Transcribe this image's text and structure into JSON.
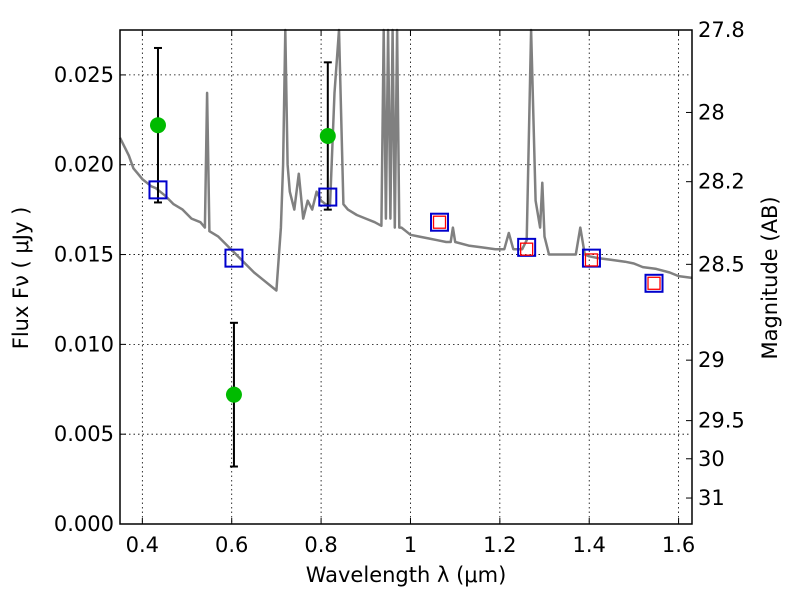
{
  "chart_data": {
    "type": "scatter",
    "title": "",
    "xlabel": "Wavelength  λ (μm)",
    "ylabel": "Flux  Fν  ( μJy )",
    "y2label": "Magnitude (AB)",
    "xlim": [
      0.35,
      1.63
    ],
    "ylim": [
      0.0,
      0.0275
    ],
    "grid": true,
    "x_ticks": [
      0.4,
      0.6,
      0.8,
      1.0,
      1.2,
      1.4,
      1.6
    ],
    "x_tick_labels": [
      "0.4",
      "0.6",
      "0.8",
      "1",
      "1.2",
      "1.4",
      "1.6"
    ],
    "y_ticks": [
      0.0,
      0.005,
      0.01,
      0.015,
      0.02,
      0.025
    ],
    "y_tick_labels": [
      "0.000",
      "0.005",
      "0.010",
      "0.015",
      "0.020",
      "0.025"
    ],
    "y2_ticks": [
      27.8,
      28,
      28.2,
      28.5,
      29,
      29.5,
      30,
      31
    ],
    "y2_tick_labels": [
      "27.8",
      "28",
      "28.2",
      "28.5",
      "29",
      "29.5",
      "30",
      "31"
    ],
    "colors": {
      "sed": "#808080",
      "observed": "#00bb00",
      "model": "#0000cc",
      "model_inner": "#ff0000",
      "errorbar": "#000000"
    },
    "series": [
      {
        "name": "",
        "style": "line",
        "color": "#808080",
        "x": [
          0.35,
          0.36,
          0.37,
          0.38,
          0.39,
          0.4,
          0.41,
          0.42,
          0.43,
          0.44,
          0.45,
          0.47,
          0.49,
          0.51,
          0.53,
          0.54,
          0.545,
          0.55,
          0.57,
          0.59,
          0.61,
          0.63,
          0.65,
          0.67,
          0.69,
          0.7,
          0.71,
          0.715,
          0.72,
          0.725,
          0.73,
          0.74,
          0.75,
          0.76,
          0.77,
          0.78,
          0.79,
          0.8,
          0.81,
          0.82,
          0.83,
          0.84,
          0.85,
          0.86,
          0.88,
          0.9,
          0.92,
          0.935,
          0.94,
          0.945,
          0.95,
          0.955,
          0.96,
          0.965,
          0.97,
          0.975,
          0.98,
          0.99,
          1.0,
          1.02,
          1.04,
          1.06,
          1.08,
          1.09,
          1.095,
          1.1,
          1.13,
          1.16,
          1.19,
          1.21,
          1.22,
          1.23,
          1.25,
          1.26,
          1.27,
          1.28,
          1.29,
          1.295,
          1.3,
          1.31,
          1.33,
          1.35,
          1.37,
          1.38,
          1.39,
          1.4,
          1.42,
          1.45,
          1.48,
          1.5,
          1.52,
          1.55,
          1.58,
          1.6,
          1.63
        ],
        "y": [
          0.0215,
          0.021,
          0.0205,
          0.0198,
          0.0195,
          0.0192,
          0.019,
          0.0188,
          0.0187,
          0.0185,
          0.0183,
          0.0178,
          0.0175,
          0.017,
          0.0168,
          0.0165,
          0.024,
          0.0163,
          0.016,
          0.0155,
          0.015,
          0.0145,
          0.014,
          0.0136,
          0.0132,
          0.013,
          0.0165,
          0.02,
          0.028,
          0.02,
          0.0185,
          0.0175,
          0.0195,
          0.017,
          0.018,
          0.0175,
          0.0185,
          0.018,
          0.0178,
          0.0177,
          0.024,
          0.028,
          0.0178,
          0.0175,
          0.0172,
          0.017,
          0.0168,
          0.0166,
          0.028,
          0.017,
          0.028,
          0.017,
          0.028,
          0.0165,
          0.028,
          0.0165,
          0.0165,
          0.0163,
          0.0161,
          0.016,
          0.0159,
          0.0158,
          0.0157,
          0.0157,
          0.0165,
          0.0157,
          0.0155,
          0.0154,
          0.0153,
          0.0153,
          0.0162,
          0.0153,
          0.0153,
          0.0158,
          0.028,
          0.018,
          0.0165,
          0.019,
          0.016,
          0.015,
          0.015,
          0.015,
          0.015,
          0.0165,
          0.015,
          0.0149,
          0.0148,
          0.0147,
          0.0146,
          0.0145,
          0.0143,
          0.0142,
          0.014,
          0.0138,
          0.0137
        ]
      },
      {
        "name": "",
        "style": "scatter",
        "color": "#00bb00",
        "x": [
          0.435,
          0.605,
          0.815
        ],
        "y": [
          0.0222,
          0.0072,
          0.0216
        ],
        "yerr_low": [
          0.0179,
          0.0032,
          0.0175
        ],
        "yerr_high": [
          0.0265,
          0.0112,
          0.0257
        ]
      },
      {
        "name": "",
        "style": "square",
        "color": "#0000cc",
        "x": [
          0.435,
          0.605,
          0.815,
          1.065,
          1.26,
          1.405,
          1.545
        ],
        "y": [
          0.0186,
          0.0148,
          0.0182,
          0.0168,
          0.0154,
          0.0148,
          0.0134
        ]
      },
      {
        "name": "",
        "style": "square-small",
        "color": "#ff0000",
        "x": [
          1.065,
          1.26,
          1.405,
          1.545
        ],
        "y": [
          0.0168,
          0.0153,
          0.0147,
          0.0134
        ]
      }
    ]
  }
}
